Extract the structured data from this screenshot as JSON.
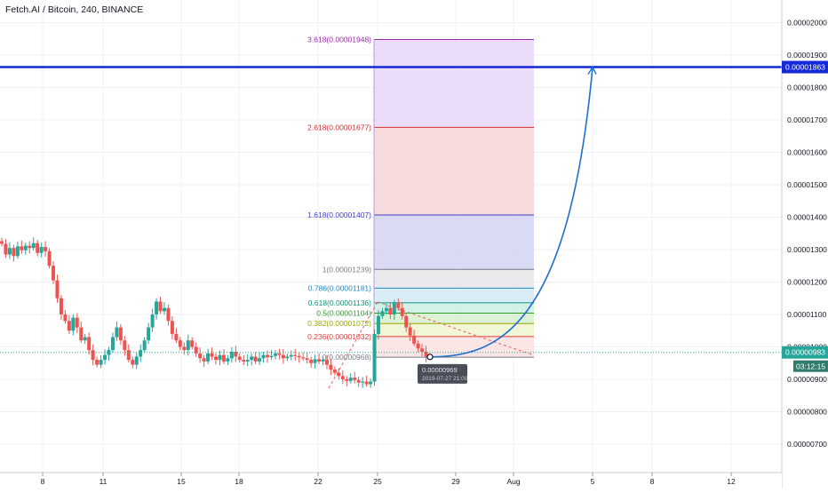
{
  "header": {
    "title": "Fetch.AI / Bitcoin, 240, BINANCE"
  },
  "colors": {
    "background": "#ffffff",
    "grid": "#eef0f3",
    "candle_up": "#26a69a",
    "candle_down": "#ef5350",
    "target_line": "#1428d8",
    "projection": "#1e6fce",
    "current_price": "#26a69a"
  },
  "chart_data": {
    "type": "candlestick",
    "title": "Fetch.AI / Bitcoin, 240, BINANCE",
    "ylim": [
      6.4e-06,
      2.1e-05
    ],
    "y_ticks": [
      "0.00002000",
      "0.00001900",
      "0.00001800",
      "0.00001700",
      "0.00001600",
      "0.00001500",
      "0.00001400",
      "0.00001300",
      "0.00001200",
      "0.00001100",
      "0.00001000",
      "0.00000900",
      "0.00000800",
      "0.00000700"
    ],
    "x_ticks": [
      "8",
      "11",
      "15",
      "18",
      "22",
      "25",
      "29",
      "Aug",
      "5",
      "8",
      "12"
    ],
    "grid": true,
    "close_path": [
      [
        1.318e-05,
        1.285e-05,
        1.305e-05,
        1.28e-05,
        1.31e-05,
        1.298e-05,
        1.312e-05,
        1.305e-05,
        1.32e-05,
        1.29e-05,
        1.308e-05,
        1.295e-05,
        1.25e-05
      ],
      [
        1.205e-05,
        1.15e-05,
        1.1e-05,
        1.08e-05,
        1.05e-05,
        1.09e-05,
        1.06e-05,
        1.02e-05,
        1.03e-05,
        9.9e-06,
        9.6e-06,
        9.45e-06
      ],
      [
        9.6e-06,
        9.75e-06,
        9.9e-06,
        1.03e-05,
        1.06e-05,
        1.02e-05,
        9.9e-06,
        9.6e-06,
        9.45e-06,
        9.7e-06,
        9.9e-06,
        1.02e-05
      ],
      [
        1.06e-05,
        1.1e-05,
        1.14e-05,
        1.11e-05,
        1.12e-05,
        1.08e-05,
        1.04e-05,
        1.02e-05,
        1e-05,
        9.9e-06,
        1.02e-05,
        1e-05
      ],
      [
        9.8e-06,
        9.65e-06,
        9.55e-06,
        9.8e-06,
        9.7e-06,
        9.6e-06,
        9.75e-06,
        9.55e-06,
        9.65e-06,
        9.85e-06,
        9.7e-06,
        9.6e-06
      ],
      [
        9.55e-06,
        9.6e-06,
        9.7e-06,
        9.55e-06,
        9.65e-06,
        9.75e-06,
        9.68e-06,
        9.72e-06,
        9.8e-06,
        9.75e-06,
        9.65e-06,
        9.7e-06
      ],
      [
        9.75e-06,
        9.72e-06,
        9.68e-06,
        9.65e-06,
        9.6e-06,
        9.5e-06,
        9.62e-06,
        9.55e-06,
        9.6e-06,
        9.45e-06,
        9.3e-06,
        9.2e-06
      ],
      [
        9.1e-06,
        9e-06,
        8.95e-06,
        9.05e-06,
        8.98e-06,
        8.9e-06,
        8.93e-06,
        8.85e-06,
        8.93e-06,
        1.04e-05,
        1.095e-05,
        1.11e-05
      ],
      [
        1.12e-05,
        1.1e-05,
        1.135e-05,
        1.12e-05,
        1.095e-05,
        1.06e-05,
        1.035e-05,
        1.01e-05,
        9.95e-06,
        9.85e-06,
        9.7e-06,
        9.69e-06
      ]
    ],
    "fibonacci": {
      "levels": [
        {
          "ratio": "3.618",
          "price": 1.948e-05,
          "label": "3.618(0.00001948)",
          "color": "#9c27b0",
          "fill": "#e8d6f8"
        },
        {
          "ratio": "2.618",
          "price": 1.677e-05,
          "label": "2.618(0.00001677)",
          "color": "#d32f2f",
          "fill": "#f6d5d6"
        },
        {
          "ratio": "1.618",
          "price": 1.407e-05,
          "label": "1.618(0.00001407)",
          "color": "#3f3fbf",
          "fill": "#d3d4f3"
        },
        {
          "ratio": "1",
          "price": 1.239e-05,
          "label": "1(0.00001239)",
          "color": "#787b86",
          "fill": "#e6e6ea"
        },
        {
          "ratio": "0.786",
          "price": 1.181e-05,
          "label": "0.786(0.00001181)",
          "color": "#1e88c8",
          "fill": "#d4e9f5"
        },
        {
          "ratio": "0.618",
          "price": 1.136e-05,
          "label": "0.618(0.00001136)",
          "color": "#089981",
          "fill": "#cdeee4"
        },
        {
          "ratio": "0.5",
          "price": 1.104e-05,
          "label": "0.5(0.00001104)",
          "color": "#33a02c",
          "fill": "#d6f0cf"
        },
        {
          "ratio": "0.382",
          "price": 1.072e-05,
          "label": "0.382(0.00001072)",
          "color": "#9aa600",
          "fill": "#eef5d0"
        },
        {
          "ratio": "0.236",
          "price": 1.032e-05,
          "label": "0.236(0.00001032)",
          "color": "#e53935",
          "fill": "#fbe0e0"
        },
        {
          "ratio": "0",
          "price": 9.68e-06,
          "label": "0(0.00000968)",
          "color": "#787b86",
          "fill": "#f3f3f5"
        }
      ]
    },
    "target_price": 1.863e-05,
    "target_label": "0.00001863",
    "current_price": 9.83e-06,
    "current_label": "0.00000983",
    "countdown": "03:12:15",
    "tooltip": {
      "price": "0.00000969",
      "date": "2019-07-27 21:00"
    }
  }
}
